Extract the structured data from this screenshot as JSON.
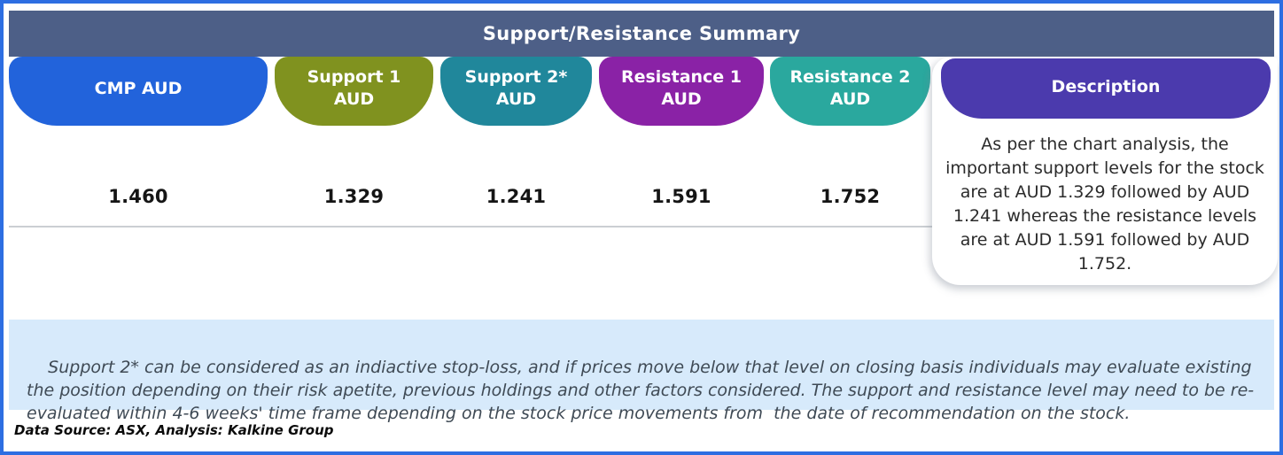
{
  "chart_data": {
    "type": "table",
    "title": "Support/Resistance Summary",
    "columns": [
      {
        "header": "CMP AUD",
        "header_line1": "CMP AUD",
        "header_line2": "",
        "value": "1.460",
        "pill_color": "#2263DB"
      },
      {
        "header": "Support 1 AUD",
        "header_line1": "Support 1",
        "header_line2": "AUD",
        "value": "1.329",
        "pill_color": "#80921F"
      },
      {
        "header": "Support 2* AUD",
        "header_line1": "Support 2*",
        "header_line2": "AUD",
        "value": "1.241",
        "pill_color": "#20879B"
      },
      {
        "header": "Resistance 1 AUD",
        "header_line1": "Resistance 1",
        "header_line2": "AUD",
        "value": "1.591",
        "pill_color": "#8A22A6"
      },
      {
        "header": "Resistance 2 AUD",
        "header_line1": "Resistance 2",
        "header_line2": "AUD",
        "value": "1.752",
        "pill_color": "#2AA89E"
      }
    ],
    "description_column": {
      "header": "Description",
      "pill_color": "#4B3AAD",
      "text": "As per the chart analysis, the important support levels for the stock are at AUD 1.329 followed by AUD 1.241 whereas the resistance levels are at AUD 1.591 followed by AUD 1.752."
    },
    "footnote": "Support 2* can be considered as an indiactive stop-loss, and if prices move below that level on closing basis individuals may evaluate existing the position depending on their risk apetite, previous holdings and other factors considered. The support and resistance level may need to be re-evaluated within 4-6 weeks' time frame depending on the stock price movements from  the date of recommendation on the stock.",
    "source_note": "Data Source: ASX, Analysis: Kalkine Group"
  },
  "colors": {
    "frame_border": "#2D6EE2",
    "title_bar_bg": "#4D5F87",
    "note_bg": "#D7EAFB",
    "divider": "#CBCFD3"
  }
}
